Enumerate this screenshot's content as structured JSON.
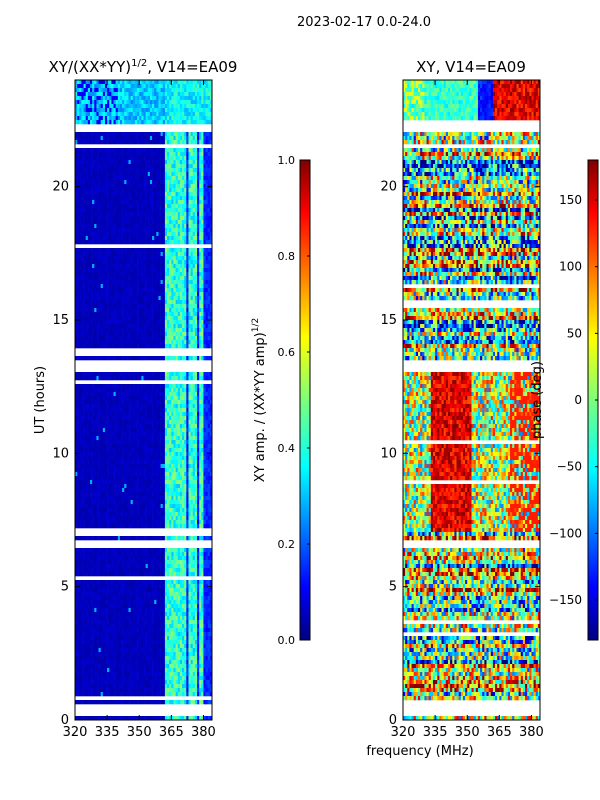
{
  "figure": {
    "suptitle": "2023-02-17 0.0-24.0",
    "shared_xlabel": "frequency (MHz)"
  },
  "chart_data": [
    {
      "type": "heatmap",
      "title_main": "XY/(XX*YY)",
      "title_sup": "1/2",
      "title_rest": ", V14=EA09",
      "xlabel": "frequency (MHz)",
      "ylabel": "UT (hours)",
      "xlim": [
        320,
        384
      ],
      "ylim": [
        0,
        24
      ],
      "xticks": [
        320,
        335,
        350,
        365,
        380
      ],
      "yticks": [
        0,
        5,
        10,
        15,
        20
      ],
      "colorbar": {
        "label_main": "XY amp. / (XX*YY amp)",
        "label_sup": "1/2",
        "range": [
          0.0,
          1.0
        ],
        "ticks": [
          "0.0",
          "0.2",
          "0.4",
          "0.6",
          "0.8",
          "1.0"
        ],
        "colormap": "jet"
      },
      "flagged_hours": [
        [
          0.2,
          0.6
        ],
        [
          0.8,
          0.9
        ],
        [
          6.5,
          6.7
        ],
        [
          7.1,
          7.25
        ],
        [
          13.1,
          13.5
        ],
        [
          22.0,
          22.4
        ],
        [
          21.5,
          21.65
        ]
      ],
      "features": "low amplitude (~0.05) below 362 MHz; bright vertical stripes near 363, 367, 371, 376 MHz (~0.3-0.5)"
    },
    {
      "type": "heatmap",
      "title": "XY, V14=EA09",
      "xlabel": "frequency (MHz)",
      "ylabel": "",
      "xlim": [
        320,
        384
      ],
      "ylim": [
        0,
        24
      ],
      "xticks": [
        320,
        335,
        350,
        365,
        380
      ],
      "yticks": [
        0,
        5,
        10,
        15,
        20
      ],
      "colorbar": {
        "label": "phase (deg)",
        "range": [
          -180,
          180
        ],
        "ticks": [
          "−150",
          "−100",
          "−50",
          "0",
          "50",
          "100",
          "150"
        ],
        "colormap": "jet"
      },
      "flagged_hours": [
        [
          0.2,
          0.6
        ],
        [
          6.5,
          6.7
        ],
        [
          13.1,
          13.5
        ],
        [
          22.0,
          22.4
        ],
        [
          21.5,
          21.65
        ]
      ],
      "features": "noisy phase; strong red band 335-350 MHz between 7-13 h; blue near 360 MHz at 22-24 h"
    }
  ]
}
